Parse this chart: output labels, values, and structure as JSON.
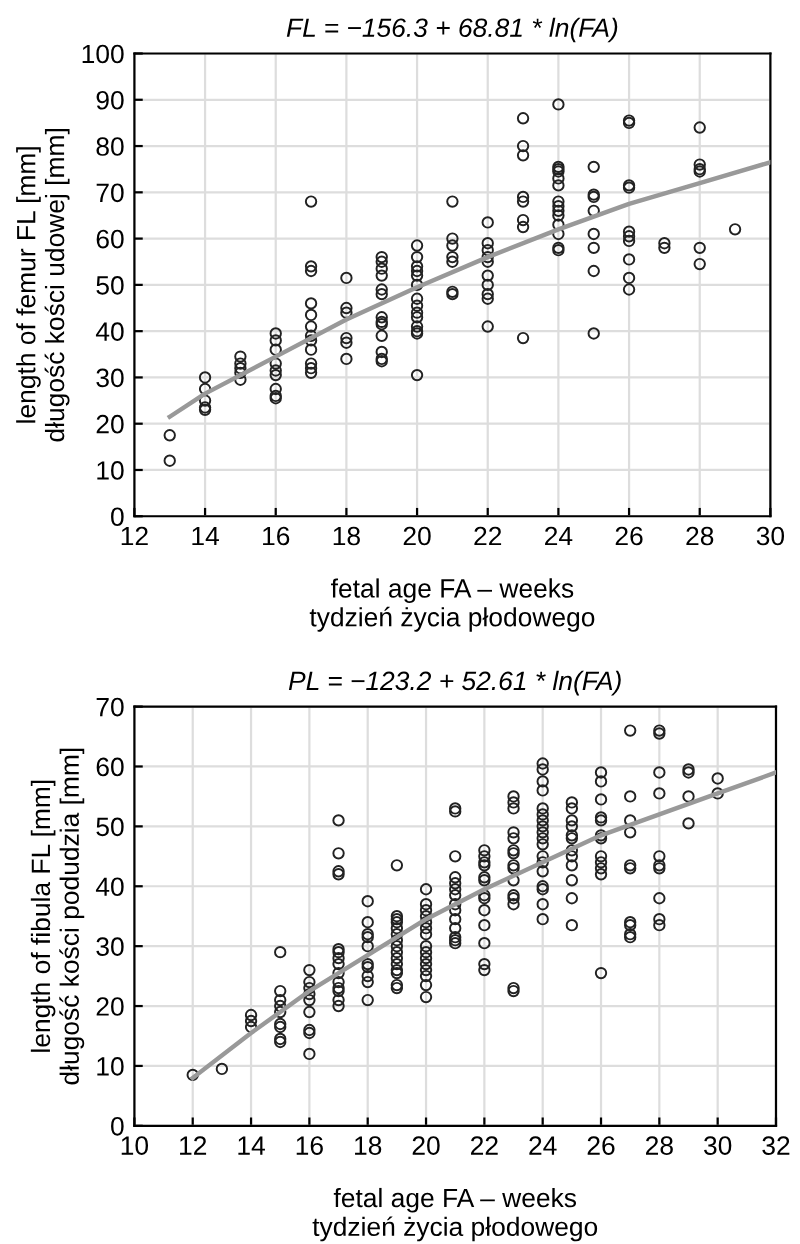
{
  "chart_data": [
    {
      "type": "scatter",
      "title": "FL = −156.3 + 68.81 * ln(FA)",
      "xlabel": "fetal age FA – weeks\ntydzień życia płodowego",
      "ylabel": "length of femur FL [mm]\ndługość kości udowej [mm]",
      "xlim": [
        12,
        30
      ],
      "xticks": [
        12,
        14,
        16,
        18,
        20,
        22,
        24,
        26,
        28,
        30
      ],
      "ylim": [
        0,
        100
      ],
      "yticks": [
        0,
        10,
        20,
        30,
        40,
        50,
        60,
        70,
        80,
        90,
        100
      ],
      "grid": true,
      "marker": "circle",
      "series": [
        {
          "color": "#222222",
          "x": [
            13,
            13,
            14,
            14,
            14,
            14,
            14,
            15,
            15,
            15,
            15,
            15,
            16,
            16,
            16,
            16,
            16,
            16,
            16,
            16,
            16,
            17,
            17,
            17,
            17,
            17,
            17,
            17,
            17,
            17,
            17,
            17,
            17,
            18,
            18,
            18,
            18,
            18,
            18,
            19,
            19,
            19,
            19,
            19,
            19,
            19,
            19,
            19,
            19,
            19,
            19,
            19,
            20,
            20,
            20,
            20,
            20,
            20,
            20,
            20,
            20,
            20,
            20,
            20,
            20,
            20,
            21,
            21,
            21,
            21,
            21,
            21,
            21,
            22,
            22,
            22,
            22,
            22,
            22,
            22,
            22,
            22,
            22,
            23,
            23,
            23,
            23,
            23,
            23,
            23,
            23,
            24,
            24,
            24,
            24,
            24,
            24,
            24,
            24,
            24,
            24,
            24,
            24,
            24,
            24,
            25,
            25,
            25,
            25,
            25,
            25,
            25,
            25,
            26,
            26,
            26,
            26,
            26,
            26,
            26,
            26,
            26,
            26,
            27,
            27,
            28,
            28,
            28,
            28,
            28,
            28,
            29
          ],
          "values": [
            17.5,
            12,
            30,
            27.5,
            25,
            23.5,
            23,
            34.5,
            33,
            32,
            31,
            29.5,
            39.5,
            38,
            36,
            33,
            31.5,
            30.5,
            27.5,
            26,
            25.5,
            68,
            54,
            53,
            46,
            43.5,
            41,
            39,
            38,
            36,
            33,
            32,
            31,
            51.5,
            45,
            44,
            38.5,
            37.5,
            34,
            56,
            55,
            53.5,
            52,
            49,
            48,
            43,
            42,
            41.5,
            39,
            35.5,
            34,
            33.5,
            58.5,
            56,
            54,
            53,
            52,
            50,
            47,
            45.5,
            44,
            43,
            41,
            40,
            39.5,
            30.5,
            68,
            60,
            58.5,
            56,
            55,
            48.5,
            48,
            63.5,
            59,
            57.5,
            56,
            55,
            52,
            50,
            48,
            47,
            41,
            86,
            80,
            78,
            69,
            68,
            64,
            62.5,
            38.5,
            89,
            75.5,
            75,
            74.5,
            73,
            71.5,
            68,
            67,
            66,
            65,
            63,
            61,
            58,
            57.5,
            75.5,
            69.5,
            69,
            66,
            61,
            58,
            53,
            39.5,
            85.5,
            85,
            71.5,
            71,
            61.5,
            60.5,
            59.5,
            55.5,
            51.5,
            49,
            59,
            58,
            84,
            76,
            75,
            74.5,
            58,
            54.5,
            62
          ]
        },
        {
          "type": "line",
          "color": "#999999",
          "marker": "none",
          "x": [
            13,
            14,
            16,
            18,
            20,
            22,
            24,
            26,
            28,
            30
          ],
          "values": [
            21.5,
            26.5,
            34.5,
            42.5,
            49.5,
            56,
            62,
            67.5,
            72,
            76.5
          ]
        }
      ]
    },
    {
      "type": "scatter",
      "title": "PL = −123.2 + 52.61 * ln(FA)",
      "xlabel": "fetal age FA – weeks\ntydzień życia płodowego",
      "ylabel": "length of fibula FL [mm]\ndługość kości podudzia [mm]",
      "xlim": [
        10,
        32
      ],
      "xticks": [
        10,
        12,
        14,
        16,
        18,
        20,
        22,
        24,
        26,
        28,
        30,
        32
      ],
      "ylim": [
        0,
        70
      ],
      "yticks": [
        0,
        10,
        20,
        30,
        40,
        50,
        60,
        70
      ],
      "grid": true,
      "marker": "circle",
      "series": [
        {
          "color": "#222222",
          "x": [
            12,
            13,
            14,
            14,
            14,
            15,
            15,
            15,
            15,
            15,
            15,
            15,
            15,
            15,
            16,
            16,
            16,
            16,
            16,
            16,
            16,
            16,
            16,
            17,
            17,
            17,
            17,
            17,
            17,
            17,
            17,
            17,
            17,
            17,
            17,
            17,
            17,
            18,
            18,
            18,
            18,
            18,
            18,
            18,
            18,
            18,
            18,
            19,
            19,
            19,
            19,
            19,
            19,
            19,
            19,
            19,
            19,
            19,
            19,
            19,
            19,
            19,
            20,
            20,
            20,
            20,
            20,
            20,
            20,
            20,
            20,
            20,
            20,
            20,
            20,
            20,
            20,
            21,
            21,
            21,
            21,
            21,
            21,
            21,
            21,
            21,
            21,
            21,
            21,
            21,
            21,
            22,
            22,
            22,
            22,
            22,
            22,
            22,
            22,
            22,
            22,
            22,
            22,
            22,
            23,
            23,
            23,
            23,
            23,
            23,
            23,
            23,
            23,
            23,
            23,
            23,
            23,
            23,
            23,
            24,
            24,
            24,
            24,
            24,
            24,
            24,
            24,
            24,
            24,
            24,
            24,
            24,
            24,
            24,
            24,
            24,
            24,
            25,
            25,
            25,
            25,
            25,
            25,
            25,
            25,
            25,
            25,
            25,
            25,
            26,
            26,
            26,
            26,
            26,
            26,
            26,
            26,
            26,
            26,
            26,
            26,
            27,
            27,
            27,
            27,
            27,
            27,
            27,
            27,
            27,
            27,
            28,
            28,
            28,
            28,
            28,
            28,
            28,
            28,
            28,
            28,
            29,
            29,
            29,
            29,
            30,
            30
          ],
          "values": [
            8.5,
            9.5,
            18.5,
            17.5,
            16.5,
            29,
            22.5,
            21,
            20,
            19,
            17,
            16.5,
            14.5,
            14,
            26,
            24,
            23,
            22,
            21,
            19,
            16,
            15.5,
            12,
            51,
            45.5,
            42.5,
            42,
            29.5,
            29,
            28,
            27,
            25.5,
            24,
            23,
            22.5,
            21,
            20,
            37.5,
            34,
            32,
            31.5,
            30,
            27,
            26.5,
            25,
            24,
            21,
            43.5,
            35,
            34.5,
            34,
            33,
            32,
            31,
            30,
            29,
            28,
            27,
            26,
            25.5,
            23.5,
            23,
            39.5,
            37,
            36,
            35,
            34,
            33,
            32,
            30,
            29,
            28,
            27,
            26,
            25,
            23.5,
            21.5,
            53,
            52.5,
            45,
            41.5,
            40.5,
            39.5,
            38.5,
            37,
            36,
            34.5,
            33,
            31.5,
            31,
            30.5,
            46,
            45,
            44,
            43.5,
            41.5,
            41,
            38.5,
            38,
            36,
            33.5,
            30.5,
            27,
            26,
            55,
            54,
            53,
            49,
            48,
            46,
            45.5,
            43.5,
            43,
            41,
            38.5,
            38,
            37,
            23,
            22.5,
            60.5,
            59.5,
            57.5,
            56,
            53,
            52,
            51,
            50,
            49,
            48,
            47,
            45,
            44,
            42.5,
            40,
            39.5,
            37,
            34.5,
            54,
            53,
            51,
            50,
            48.5,
            48,
            46,
            45,
            43.5,
            41,
            38,
            33.5,
            59,
            57.5,
            54.5,
            51.5,
            51,
            48.5,
            48,
            45,
            44,
            43,
            42,
            25.5,
            66,
            55,
            51,
            49,
            43.5,
            43,
            34,
            33.5,
            32,
            31.5,
            66,
            65.5,
            59,
            55.5,
            45,
            43.5,
            43,
            38,
            34.5,
            33.5,
            59.5,
            59,
            55,
            50.5,
            58,
            55.5
          ]
        },
        {
          "type": "line",
          "color": "#999999",
          "marker": "none",
          "x": [
            12,
            14,
            16,
            18,
            20,
            22,
            24,
            26,
            28,
            30,
            32
          ],
          "values": [
            8,
            15.5,
            22.5,
            28.5,
            34.5,
            39.5,
            44,
            48.5,
            52,
            55.5,
            59
          ]
        }
      ]
    }
  ]
}
